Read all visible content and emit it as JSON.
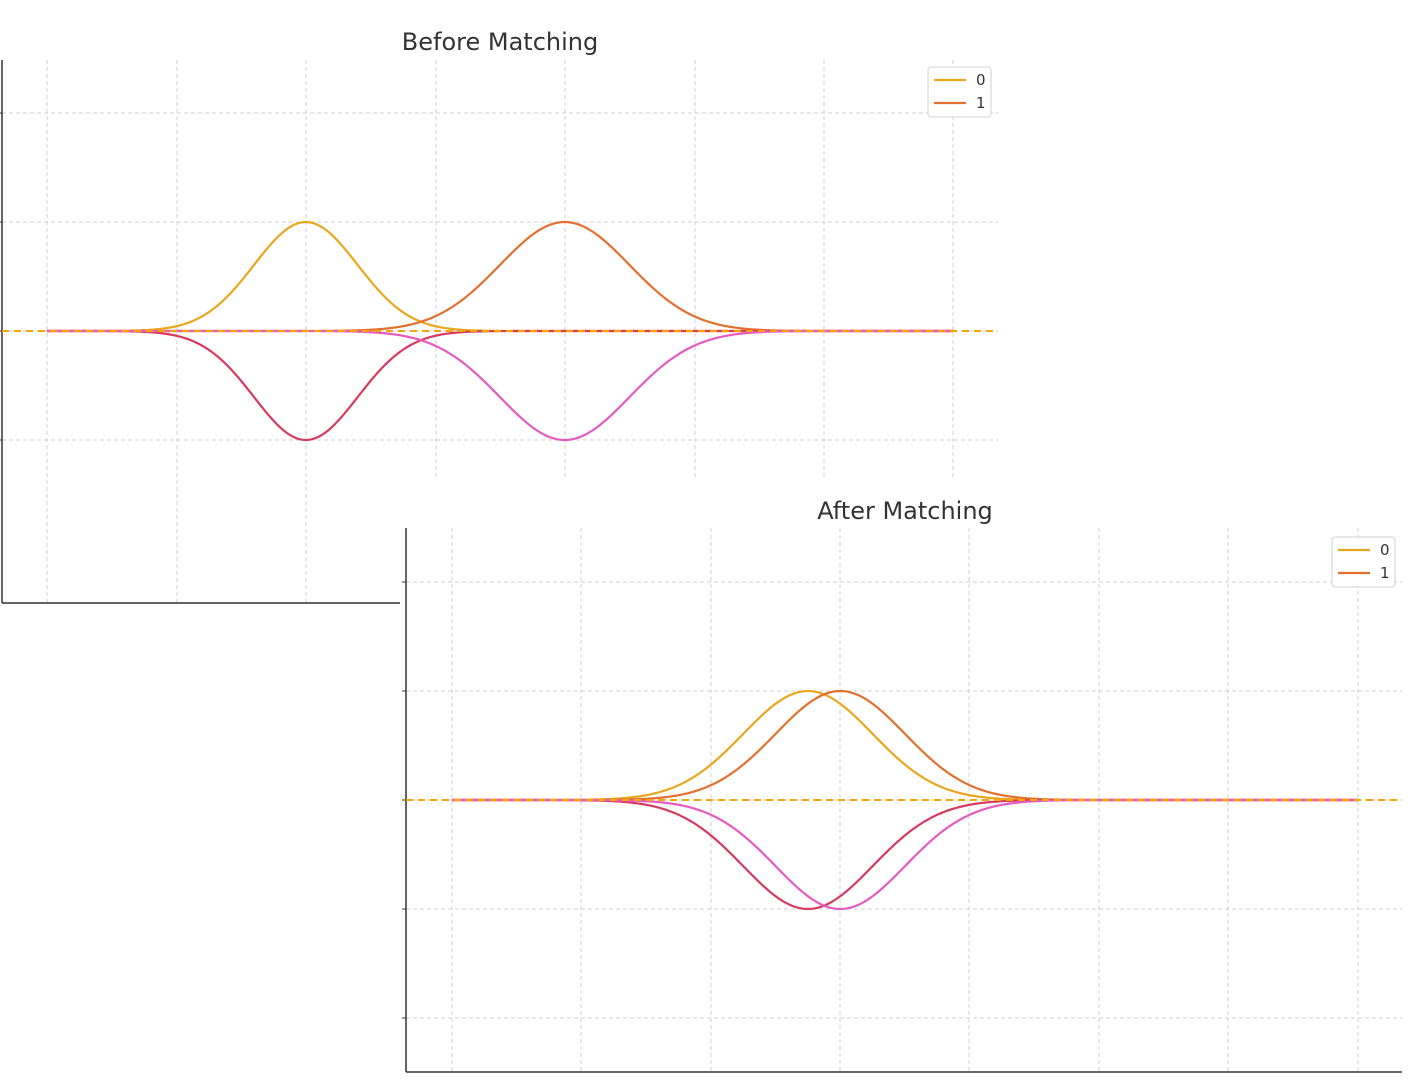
{
  "chart_data": [
    {
      "type": "line",
      "title": "Before Matching",
      "xlabel": "",
      "ylabel": "",
      "xlim": [
        0.0,
        14.0
      ],
      "ylim": [
        -2.0,
        2.5
      ],
      "grid": true,
      "legend": {
        "placement": "top-right",
        "entries": [
          "0",
          "1"
        ]
      },
      "colors": {
        "0": "#E8A71C",
        "1": "#E3702F",
        "mirror_0": "#D83A5F",
        "mirror_1": "#E65BC0",
        "baseline": "#F5A600"
      },
      "baseline_y": 0,
      "series": [
        {
          "name": "0",
          "role": "positive",
          "mu": 4.0,
          "sigma": 0.8,
          "amplitude": 1.0
        },
        {
          "name": "1",
          "role": "positive",
          "mu": 8.0,
          "sigma": 1.0,
          "amplitude": 1.0
        },
        {
          "role": "mirror-of-0",
          "mu": 4.0,
          "sigma": 0.8,
          "amplitude": -1.0
        },
        {
          "role": "mirror-of-1",
          "mu": 8.0,
          "sigma": 1.0,
          "amplitude": -1.0
        }
      ]
    },
    {
      "type": "line",
      "title": "After Matching",
      "xlabel": "",
      "ylabel": "",
      "xlim": [
        0.0,
        14.0
      ],
      "ylim": [
        -2.0,
        2.0
      ],
      "grid": true,
      "legend": {
        "placement": "top-right",
        "entries": [
          "0",
          "1"
        ]
      },
      "colors": {
        "0": "#E8A71C",
        "1": "#E3702F",
        "mirror_0": "#D83A5F",
        "mirror_1": "#E65BC0",
        "baseline": "#F5A600"
      },
      "baseline_y": 0,
      "series": [
        {
          "name": "0",
          "role": "positive",
          "mu": 5.5,
          "sigma": 1.0,
          "amplitude": 1.0
        },
        {
          "name": "1",
          "role": "positive",
          "mu": 6.0,
          "sigma": 1.0,
          "amplitude": 1.0
        },
        {
          "role": "mirror-of-0",
          "mu": 5.5,
          "sigma": 1.0,
          "amplitude": -1.0
        },
        {
          "role": "mirror-of-1",
          "mu": 6.0,
          "sigma": 1.0,
          "amplitude": -1.0
        }
      ]
    }
  ]
}
